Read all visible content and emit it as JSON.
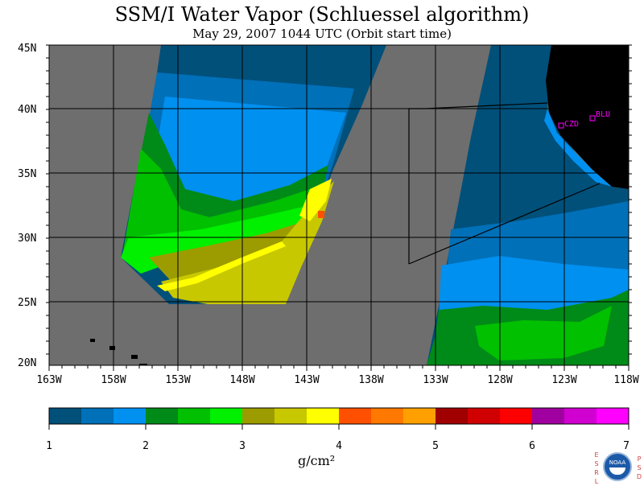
{
  "title": "SSM/I Water Vapor (Schluessel algorithm)",
  "subtitle": "May 29, 2007  1044 UTC  (Orbit start time)",
  "lat_labels": [
    "45N",
    "40N",
    "35N",
    "30N",
    "25N",
    "20N"
  ],
  "lon_labels": [
    "163W",
    "158W",
    "153W",
    "148W",
    "143W",
    "138W",
    "133W",
    "128W",
    "123W",
    "118W"
  ],
  "stations": [
    {
      "name": "CZD",
      "lon": -123.3,
      "lat": 38.6
    },
    {
      "name": "BLU",
      "lon": -121.0,
      "lat": 39.3
    }
  ],
  "colorbar": {
    "ticks": [
      "1",
      "2",
      "3",
      "4",
      "5",
      "6",
      "7"
    ],
    "unit": "g/cm²",
    "colors": [
      "#00507a",
      "#0070b8",
      "#0090f0",
      "#008a18",
      "#00c000",
      "#00f000",
      "#9c9c00",
      "#c8c800",
      "#ffff00",
      "#ff5000",
      "#ff7800",
      "#ffa000",
      "#a00000",
      "#d00000",
      "#ff0000",
      "#a000a0",
      "#d000d0",
      "#ff00ff"
    ]
  },
  "colors": {
    "no_data": "#6e6e6e",
    "land": "#000000",
    "station_marker": "#ff00ff"
  },
  "agency": {
    "left_letters": "ESRL",
    "right_letters": "PSD",
    "logo_text": "NOAA"
  }
}
